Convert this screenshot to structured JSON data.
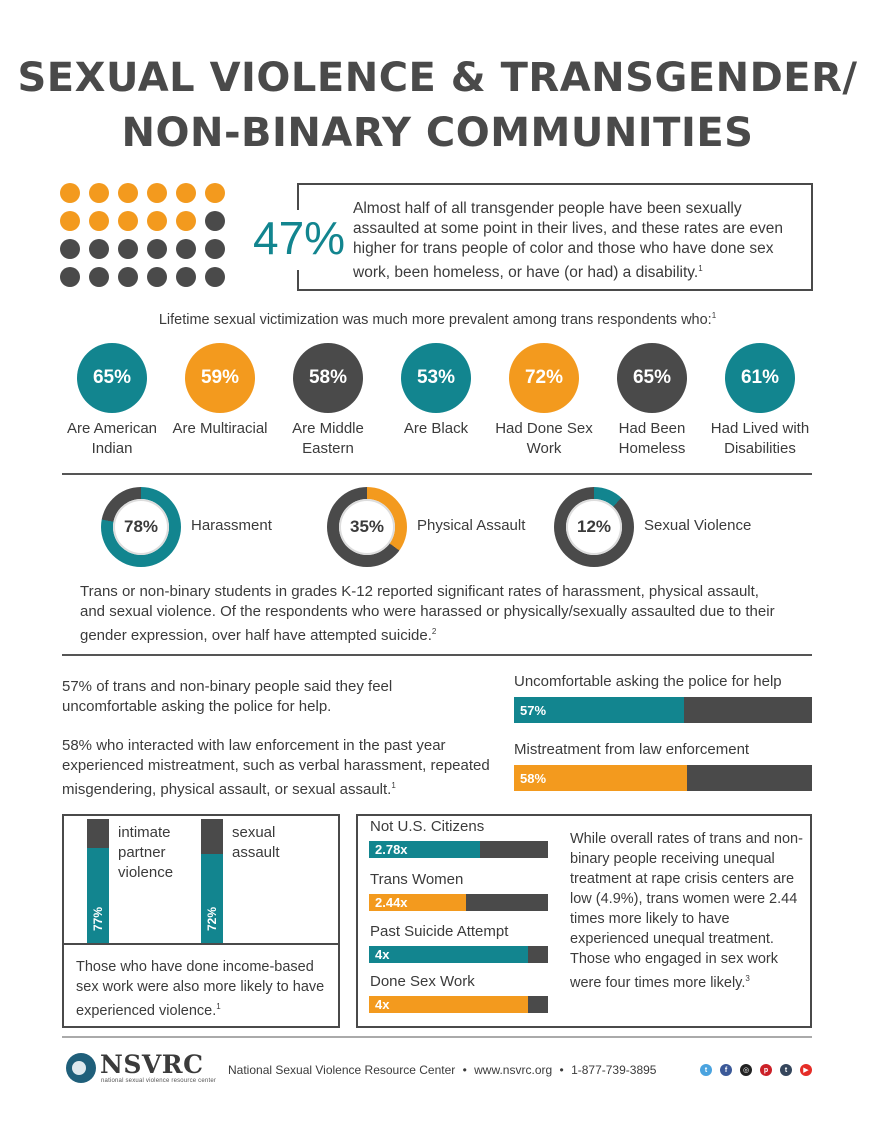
{
  "header": {
    "title_line1": "SEXUAL VIOLENCE & TRANSGENDER/",
    "title_line2": "NON-BINARY COMMUNITIES"
  },
  "intro": {
    "percent": "47%",
    "text": "Almost half of all transgender people have been sexually assaulted at some point in their lives, and these rates are even higher for trans people of color and those who have done sex work, been homeless, or have (or had) a disability.",
    "footnote": "1",
    "dot_grid": {
      "rows": 4,
      "cols": 6,
      "highlighted": 11,
      "highlight_color": "#f39a1e",
      "base_color": "#4a4a4a"
    }
  },
  "lifetime": {
    "heading": "Lifetime sexual victimization was much more prevalent among trans respondents who:",
    "footnote": "1",
    "items": [
      {
        "pct": "65%",
        "label": "Are American Indian",
        "color": "#12858f"
      },
      {
        "pct": "59%",
        "label": "Are Multiracial",
        "color": "#f39a1e"
      },
      {
        "pct": "58%",
        "label": "Are Middle Eastern",
        "color": "#4a4a4a"
      },
      {
        "pct": "53%",
        "label": "Are Black",
        "color": "#12858f"
      },
      {
        "pct": "72%",
        "label": "Had Done Sex Work",
        "color": "#f39a1e"
      },
      {
        "pct": "65%",
        "label": "Had Been Homeless",
        "color": "#4a4a4a"
      },
      {
        "pct": "61%",
        "label": "Had Lived with Disabilities",
        "color": "#12858f"
      }
    ]
  },
  "students": {
    "donuts": [
      {
        "pct": "78%",
        "value": 78,
        "label": "Harassment",
        "color": "#12858f"
      },
      {
        "pct": "35%",
        "value": 35,
        "label": "Physical Assault",
        "color": "#f39a1e"
      },
      {
        "pct": "12%",
        "value": 12,
        "label": "Sexual Violence",
        "color": "#12858f"
      }
    ],
    "text": "Trans or non-binary students in grades K-12 reported significant rates of harassment, physical assault, and sexual violence. Of the respondents who were harassed or physically/sexually assaulted due to their gender expression, over half have attempted suicide.",
    "footnote": "2"
  },
  "police": {
    "para1": "57% of trans and non-binary people said they feel uncomfortable asking the police for help.",
    "para2": "58% who interacted with law enforcement in the past year experienced mistreatment, such as verbal harassment, repeated misgendering, physical assault, or sexual assault.",
    "footnote": "1",
    "bars": [
      {
        "label": "Uncomfortable asking the police for help",
        "value_text": "57%",
        "value": 57,
        "color": "#12858f"
      },
      {
        "label": "Mistreatment from law enforcement",
        "value_text": "58%",
        "value": 58,
        "color": "#f39a1e"
      }
    ]
  },
  "sexwork": {
    "bars": [
      {
        "label": "intimate partner violence",
        "value_text": "77%",
        "value": 77
      },
      {
        "label": "sexual assault",
        "value_text": "72%",
        "value": 72
      }
    ],
    "text": "Those who have done income-based sex work were also more likely to have experienced violence.",
    "footnote": "1"
  },
  "rape_crisis": {
    "bars": [
      {
        "label": "Not U.S. Citizens",
        "value_text": "2.78x",
        "value": 2.78,
        "color": "#12858f"
      },
      {
        "label": "Trans Women",
        "value_text": "2.44x",
        "value": 2.44,
        "color": "#f39a1e"
      },
      {
        "label": "Past Suicide Attempt",
        "value_text": "4x",
        "value": 4,
        "color": "#12858f"
      },
      {
        "label": "Done Sex Work",
        "value_text": "4x",
        "value": 4,
        "color": "#f39a1e"
      }
    ],
    "max": 4.5,
    "text": "While overall rates of trans and non-binary people receiving unequal treatment at rape crisis centers are low (4.9%), trans women were 2.44 times more likely to have experienced unequal treatment. Those who engaged in sex work were four times more likely.",
    "footnote": "3"
  },
  "footer": {
    "logo_text": "NSVRC",
    "logo_sub": "national sexual violence resource center",
    "org": "National Sexual Violence Resource Center",
    "sep": "•",
    "website": "www.nsvrc.org",
    "phone": "1-877-739-3895",
    "social": [
      {
        "icon": "twitter-icon",
        "glyph": "t",
        "color": "#4aa3df"
      },
      {
        "icon": "facebook-icon",
        "glyph": "f",
        "color": "#3b5998"
      },
      {
        "icon": "instagram-icon",
        "glyph": "◎",
        "color": "#222222"
      },
      {
        "icon": "pinterest-icon",
        "glyph": "p",
        "color": "#cb2027"
      },
      {
        "icon": "tumblr-icon",
        "glyph": "t",
        "color": "#35465c"
      },
      {
        "icon": "youtube-icon",
        "glyph": "▶",
        "color": "#e52d27"
      }
    ]
  }
}
